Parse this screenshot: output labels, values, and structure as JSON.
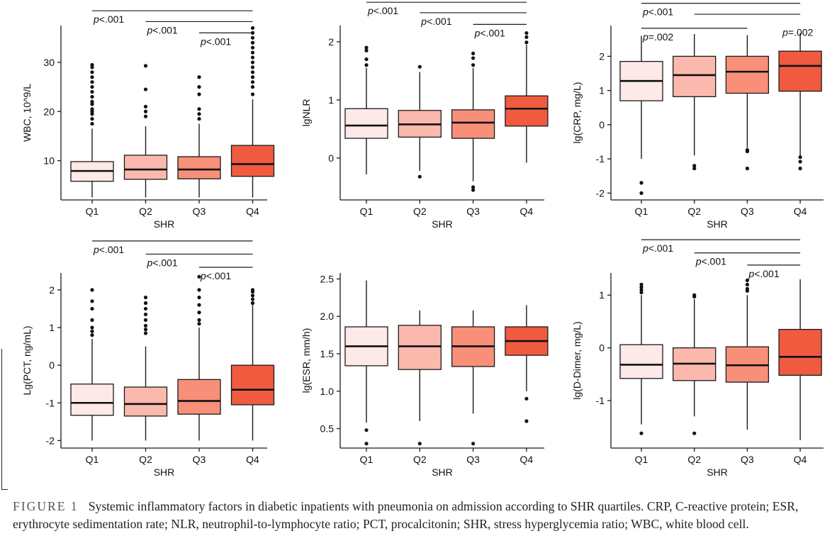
{
  "colors": {
    "Q1": "#fde9e7",
    "Q2": "#fbb9ae",
    "Q3": "#f88f79",
    "Q4": "#f05b40",
    "stroke": "#1a1a1a"
  },
  "chart_data": [
    {
      "type": "boxplot",
      "title": "",
      "xlabel": "SHR",
      "ylabel": "WBC, 10^9/L",
      "categories": [
        "Q1",
        "Q2",
        "Q3",
        "Q4"
      ],
      "ylim": [
        2,
        37.5
      ],
      "yticks": [
        "10",
        "20",
        "30"
      ],
      "boxes": [
        {
          "whislo": 2.5,
          "q1": 5.8,
          "med": 7.9,
          "q3": 9.8,
          "whishi": 16.5,
          "outliers": [
            17.5,
            18.5,
            19.5,
            20,
            20.5,
            21.5,
            22,
            23,
            24,
            25,
            26,
            27,
            28,
            29,
            29.5
          ]
        },
        {
          "whislo": 2.5,
          "q1": 6.2,
          "med": 8.2,
          "q3": 11.1,
          "whishi": 17,
          "outliers": [
            19,
            20,
            21,
            24.5,
            29.3
          ]
        },
        {
          "whislo": 2.5,
          "q1": 6.3,
          "med": 8.2,
          "q3": 10.8,
          "whishi": 17.5,
          "outliers": [
            18.5,
            19.5,
            20.5,
            23.5,
            25,
            27
          ]
        },
        {
          "whislo": 2.5,
          "q1": 6.8,
          "med": 9.3,
          "q3": 13.1,
          "whishi": 22.5,
          "outliers": [
            23.5,
            25,
            26,
            27,
            28,
            29,
            30,
            31,
            32,
            33,
            34,
            35,
            36,
            37
          ]
        }
      ],
      "sig": [
        {
          "from": 0,
          "to": 3,
          "label": "p<.001",
          "y": 40.5
        },
        {
          "from": 1,
          "to": 3,
          "label": "p<.001",
          "y": 38.3
        },
        {
          "from": 2,
          "to": 3,
          "label": "p<.001",
          "y": 36.0
        }
      ]
    },
    {
      "type": "boxplot",
      "title": "",
      "xlabel": "SHR",
      "ylabel": "lgNLR",
      "categories": [
        "Q1",
        "Q2",
        "Q3",
        "Q4"
      ],
      "ylim": [
        -0.72,
        2.28
      ],
      "yticks": [
        "0",
        "1",
        "2"
      ],
      "boxes": [
        {
          "whislo": -0.28,
          "q1": 0.34,
          "med": 0.56,
          "q3": 0.85,
          "whishi": 1.55,
          "outliers": [
            1.6,
            1.7,
            1.85,
            1.9
          ]
        },
        {
          "whislo": -0.22,
          "q1": 0.36,
          "med": 0.58,
          "q3": 0.82,
          "whishi": 1.48,
          "outliers": [
            -0.32,
            1.57
          ]
        },
        {
          "whislo": -0.4,
          "q1": 0.34,
          "med": 0.61,
          "q3": 0.83,
          "whishi": 1.55,
          "outliers": [
            -0.5,
            -0.55,
            1.6,
            1.72,
            1.8
          ]
        },
        {
          "whislo": -0.08,
          "q1": 0.55,
          "med": 0.85,
          "q3": 1.07,
          "whishi": 1.95,
          "outliers": [
            1.99,
            2.08,
            2.15
          ]
        }
      ],
      "sig": [
        {
          "from": 0,
          "to": 3,
          "label": "p<.001",
          "y": 2.68
        },
        {
          "from": 1,
          "to": 3,
          "label": "p<.001",
          "y": 2.5
        },
        {
          "from": 2,
          "to": 3,
          "label": "p<.001",
          "y": 2.3
        }
      ]
    },
    {
      "type": "boxplot",
      "title": "",
      "xlabel": "SHR",
      "ylabel": "lg(CRP, mg/L)",
      "categories": [
        "Q1",
        "Q2",
        "Q3",
        "Q4"
      ],
      "ylim": [
        -2.2,
        2.9
      ],
      "yticks": [
        "-2",
        "-1",
        "0",
        "1",
        "2"
      ],
      "boxes": [
        {
          "whislo": -1.0,
          "q1": 0.7,
          "med": 1.28,
          "q3": 1.85,
          "whishi": 2.6,
          "outliers": [
            -1.7,
            -2.0
          ]
        },
        {
          "whislo": -0.9,
          "q1": 0.82,
          "med": 1.45,
          "q3": 2.0,
          "whishi": 2.65,
          "outliers": [
            -1.2,
            -1.28
          ]
        },
        {
          "whislo": -0.68,
          "q1": 0.92,
          "med": 1.55,
          "q3": 2.0,
          "whishi": 2.62,
          "outliers": [
            -0.74,
            -0.78,
            -1.28
          ]
        },
        {
          "whislo": -0.9,
          "q1": 0.98,
          "med": 1.72,
          "q3": 2.15,
          "whishi": 2.68,
          "outliers": [
            -0.95,
            -1.08,
            -1.28
          ]
        }
      ],
      "sig": [
        {
          "from": 0,
          "to": 3,
          "label": "p<.001",
          "y": 3.55
        },
        {
          "from": 1,
          "to": 3,
          "label": "",
          "y": 3.23
        },
        {
          "from": 0,
          "to": 2,
          "label": "p=.002",
          "y": 2.82
        },
        {
          "from": 3,
          "to": 3,
          "label": "p=.002",
          "y": 2.95
        }
      ]
    },
    {
      "type": "boxplot",
      "title": "",
      "xlabel": "SHR",
      "ylabel": "Lg(PCT, ng/mL)",
      "categories": [
        "Q1",
        "Q2",
        "Q3",
        "Q4"
      ],
      "ylim": [
        -2.2,
        2.45
      ],
      "yticks": [
        "-2",
        "-1",
        "0",
        "1",
        "2"
      ],
      "boxes": [
        {
          "whislo": -2.0,
          "q1": -1.33,
          "med": -1.0,
          "q3": -0.5,
          "whishi": 0.7,
          "outliers": [
            0.8,
            0.9,
            1.0,
            1.2,
            1.5,
            1.7,
            2.0
          ]
        },
        {
          "whislo": -2.0,
          "q1": -1.35,
          "med": -1.03,
          "q3": -0.58,
          "whishi": 0.5,
          "outliers": [
            0.85,
            0.95,
            1.05,
            1.2,
            1.35,
            1.5,
            1.65,
            1.8
          ]
        },
        {
          "whislo": -2.0,
          "q1": -1.3,
          "med": -0.95,
          "q3": -0.38,
          "whishi": 1.0,
          "outliers": [
            1.1,
            1.2,
            1.4,
            1.6,
            1.8,
            2.0,
            2.35
          ]
        },
        {
          "whislo": -2.0,
          "q1": -1.05,
          "med": -0.65,
          "q3": 0.0,
          "whishi": 1.6,
          "outliers": [
            1.65,
            1.75,
            1.85,
            1.95,
            2.0
          ]
        }
      ],
      "sig": [
        {
          "from": 0,
          "to": 3,
          "label": "p<.001",
          "y": 3.3
        },
        {
          "from": 1,
          "to": 3,
          "label": "p<.001",
          "y": 2.95
        },
        {
          "from": 2,
          "to": 3,
          "label": "p<.001",
          "y": 2.6
        }
      ]
    },
    {
      "type": "boxplot",
      "title": "",
      "xlabel": "SHR",
      "ylabel": "lg(ESR, mm/h)",
      "categories": [
        "Q1",
        "Q2",
        "Q3",
        "Q4"
      ],
      "ylim": [
        0.24,
        2.58
      ],
      "yticks": [
        "0.5",
        "1.0",
        "1.5",
        "2.0",
        "2.5"
      ],
      "boxes": [
        {
          "whislo": 0.58,
          "q1": 1.34,
          "med": 1.6,
          "q3": 1.86,
          "whishi": 2.48,
          "outliers": [
            0.48,
            0.3
          ]
        },
        {
          "whislo": 0.6,
          "q1": 1.29,
          "med": 1.6,
          "q3": 1.88,
          "whishi": 2.08,
          "outliers": [
            0.3
          ]
        },
        {
          "whislo": 0.7,
          "q1": 1.33,
          "med": 1.6,
          "q3": 1.86,
          "whishi": 2.08,
          "outliers": [
            0.3
          ]
        },
        {
          "whislo": 1.0,
          "q1": 1.48,
          "med": 1.67,
          "q3": 1.86,
          "whishi": 2.15,
          "outliers": [
            0.9,
            0.6
          ]
        }
      ],
      "sig": []
    },
    {
      "type": "boxplot",
      "title": "",
      "xlabel": "SHR",
      "ylabel": "lg(D-Dimer, mg/L)",
      "categories": [
        "Q1",
        "Q2",
        "Q3",
        "Q4"
      ],
      "ylim": [
        -1.9,
        1.42
      ],
      "yticks": [
        "-1",
        "0",
        "1"
      ],
      "boxes": [
        {
          "whislo": -1.45,
          "q1": -0.58,
          "med": -0.32,
          "q3": 0.06,
          "whishi": 1.0,
          "outliers": [
            1.05,
            1.1,
            1.15,
            1.2,
            -1.62
          ]
        },
        {
          "whislo": -1.3,
          "q1": -0.62,
          "med": -0.3,
          "q3": 0.0,
          "whishi": 0.92,
          "outliers": [
            0.97,
            1.0,
            -1.62
          ]
        },
        {
          "whislo": -1.55,
          "q1": -0.65,
          "med": -0.33,
          "q3": 0.02,
          "whishi": 1.0,
          "outliers": [
            1.08,
            1.12,
            1.2,
            1.28
          ]
        },
        {
          "whislo": -1.75,
          "q1": -0.52,
          "med": -0.17,
          "q3": 0.35,
          "whishi": 1.3,
          "outliers": []
        }
      ],
      "sig": [
        {
          "from": 0,
          "to": 3,
          "label": "p<.001",
          "y": 2.05
        },
        {
          "from": 1,
          "to": 3,
          "label": "p<.001",
          "y": 1.8
        },
        {
          "from": 2,
          "to": 3,
          "label": "p<.001",
          "y": 1.57
        }
      ]
    }
  ],
  "caption": {
    "label": "FIGURE 1",
    "text": "Systemic inflammatory factors in diabetic inpatients with pneumonia on admission according to SHR quartiles. CRP, C-reactive protein; ESR, erythrocyte sedimentation rate; NLR, neutrophil-to-lymphocyte ratio; PCT, procalcitonin; SHR, stress hyperglycemia ratio; WBC, white blood cell."
  }
}
